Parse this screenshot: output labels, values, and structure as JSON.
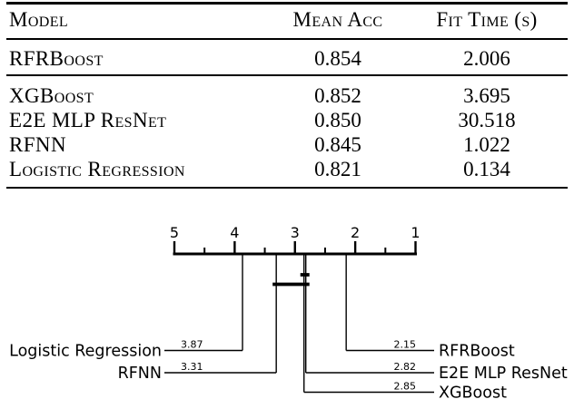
{
  "table": {
    "header": {
      "model": "Model",
      "mean_acc": "Mean Acc",
      "fit_time": "Fit Time (s)"
    },
    "group1": [
      {
        "model": "RFRBoost",
        "mean_acc": "0.854",
        "fit_time": "2.006"
      }
    ],
    "group2": [
      {
        "model": "XGBoost",
        "mean_acc": "0.852",
        "fit_time": "3.695"
      },
      {
        "model": "E2E MLP ResNet",
        "mean_acc": "0.850",
        "fit_time": "30.518"
      },
      {
        "model": "RFNN",
        "mean_acc": "0.845",
        "fit_time": "1.022"
      },
      {
        "model": "Logistic Regression",
        "mean_acc": "0.821",
        "fit_time": "0.134"
      }
    ]
  },
  "chart_data": {
    "type": "critical-difference",
    "title": "",
    "axis": {
      "left_end": 5,
      "right_end": 1,
      "major_ticks": [
        5,
        4,
        3,
        2,
        1
      ],
      "minor_ticks": [
        4.5,
        3.5,
        2.5,
        1.5
      ],
      "orientation": "horizontal",
      "ticks_above": true
    },
    "methods": [
      {
        "name": "RFRBoost",
        "avg_rank": 2.15,
        "side": "right",
        "row": 0
      },
      {
        "name": "E2E MLP ResNet",
        "avg_rank": 2.82,
        "side": "right",
        "row": 1
      },
      {
        "name": "XGBoost",
        "avg_rank": 2.85,
        "side": "right",
        "row": 2
      },
      {
        "name": "Logistic Regression",
        "avg_rank": 3.87,
        "side": "left",
        "row": 0
      },
      {
        "name": "RFNN",
        "avg_rank": 3.31,
        "side": "left",
        "row": 1
      }
    ],
    "cliques": [
      [
        "XGBoost",
        "E2E MLP ResNet"
      ],
      [
        "RFNN",
        "XGBoost",
        "E2E MLP ResNet"
      ]
    ]
  }
}
